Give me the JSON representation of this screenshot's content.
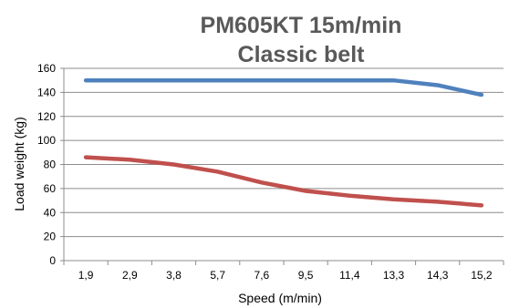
{
  "chart_data": {
    "type": "line",
    "title_lines": [
      "PM605KT 15m/min",
      "Classic belt"
    ],
    "xlabel": "Speed (m/min)",
    "ylabel": "Load weight (kg)",
    "categories": [
      "1,9",
      "2,9",
      "3,8",
      "5,7",
      "7,6",
      "9,5",
      "11,4",
      "13,3",
      "14,3",
      "15,2"
    ],
    "y_ticks": [
      "0",
      "20",
      "40",
      "60",
      "80",
      "100",
      "120",
      "140",
      "160"
    ],
    "ylim": [
      0,
      160
    ],
    "grid": "horizontal",
    "legend": "none",
    "series": [
      {
        "color": "#4f81bd",
        "values": [
          150,
          150,
          150,
          150,
          150,
          150,
          150,
          150,
          146,
          138
        ]
      },
      {
        "color": "#c0504d",
        "values": [
          86,
          84,
          80,
          74,
          65,
          58,
          54,
          51,
          49,
          46
        ]
      }
    ]
  }
}
